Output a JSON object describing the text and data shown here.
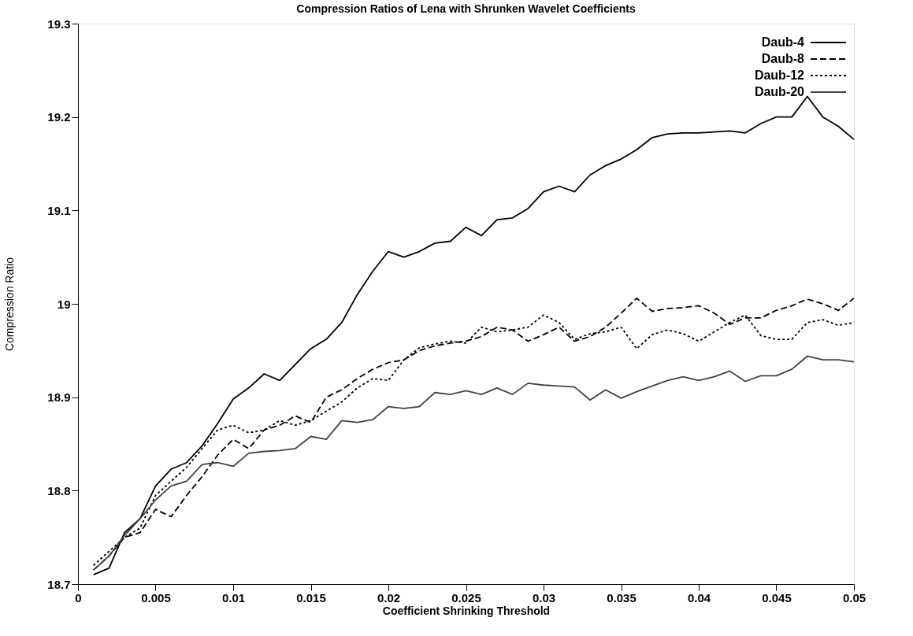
{
  "chart_data": {
    "type": "line",
    "title": "Compression Ratios of Lena with Shrunken Wavelet Coefficients",
    "xlabel": "Coefficient Shrinking Threshold",
    "ylabel": "Compression Ratio",
    "x": [
      0.001,
      0.002,
      0.003,
      0.004,
      0.005,
      0.006,
      0.007,
      0.008,
      0.009,
      0.01,
      0.011,
      0.012,
      0.013,
      0.014,
      0.015,
      0.016,
      0.017,
      0.018,
      0.019,
      0.02,
      0.021,
      0.022,
      0.023,
      0.024,
      0.025,
      0.026,
      0.027,
      0.028,
      0.029,
      0.03,
      0.031,
      0.032,
      0.033,
      0.034,
      0.035,
      0.036,
      0.037,
      0.038,
      0.039,
      0.04,
      0.041,
      0.042,
      0.043,
      0.044,
      0.045,
      0.046,
      0.047,
      0.048,
      0.049,
      0.05
    ],
    "series": [
      {
        "name": "Daub-4",
        "color": "#000000",
        "line_style": "solid",
        "values": [
          18.71,
          18.717,
          18.755,
          18.77,
          18.805,
          18.823,
          18.83,
          18.848,
          18.872,
          18.898,
          18.91,
          18.925,
          18.918,
          18.935,
          18.952,
          18.962,
          18.98,
          19.01,
          19.035,
          19.056,
          19.05,
          19.056,
          19.065,
          19.067,
          19.082,
          19.073,
          19.09,
          19.092,
          19.102,
          19.12,
          19.126,
          19.12,
          19.138,
          19.148,
          19.155,
          19.165,
          19.178,
          19.182,
          19.183,
          19.183,
          19.184,
          19.185,
          19.183,
          19.193,
          19.2,
          19.2,
          19.222,
          19.2,
          19.19,
          19.176
        ]
      },
      {
        "name": "Daub-8",
        "color": "#000000",
        "line_style": "dashed",
        "values": [
          18.715,
          18.73,
          18.75,
          18.755,
          18.78,
          18.772,
          18.795,
          18.815,
          18.838,
          18.855,
          18.845,
          18.865,
          18.87,
          18.88,
          18.873,
          18.9,
          18.908,
          18.92,
          18.93,
          18.937,
          18.94,
          18.95,
          18.955,
          18.958,
          18.96,
          18.965,
          18.975,
          18.972,
          18.96,
          18.967,
          18.975,
          18.96,
          18.965,
          18.975,
          18.99,
          19.006,
          18.992,
          18.995,
          18.996,
          18.998,
          18.99,
          18.978,
          18.985,
          18.985,
          18.993,
          18.998,
          19.005,
          19.0,
          18.993,
          19.006
        ]
      },
      {
        "name": "Daub-12",
        "color": "#000000",
        "line_style": "dotted",
        "values": [
          18.72,
          18.735,
          18.75,
          18.76,
          18.795,
          18.81,
          18.825,
          18.845,
          18.865,
          18.87,
          18.862,
          18.865,
          18.875,
          18.87,
          18.875,
          18.885,
          18.895,
          18.91,
          18.92,
          18.918,
          18.94,
          18.953,
          18.957,
          18.96,
          18.958,
          18.975,
          18.97,
          18.972,
          18.975,
          18.988,
          18.98,
          18.962,
          18.968,
          18.97,
          18.975,
          18.952,
          18.967,
          18.972,
          18.968,
          18.96,
          18.97,
          18.98,
          18.988,
          18.966,
          18.962,
          18.962,
          18.98,
          18.983,
          18.977,
          18.98
        ]
      },
      {
        "name": "Daub-20",
        "color": "#444444",
        "line_style": "solid",
        "values": [
          18.715,
          18.73,
          18.752,
          18.77,
          18.79,
          18.805,
          18.81,
          18.828,
          18.83,
          18.826,
          18.84,
          18.842,
          18.843,
          18.845,
          18.858,
          18.855,
          18.875,
          18.873,
          18.876,
          18.89,
          18.888,
          18.89,
          18.905,
          18.903,
          18.907,
          18.903,
          18.91,
          18.903,
          18.915,
          18.913,
          18.912,
          18.911,
          18.897,
          18.908,
          18.899,
          18.906,
          18.912,
          18.918,
          18.922,
          18.918,
          18.922,
          18.928,
          18.917,
          18.923,
          18.923,
          18.93,
          18.944,
          18.94,
          18.94,
          18.938
        ]
      }
    ],
    "xlim": [
      0,
      0.05
    ],
    "xticks": [
      0,
      0.005,
      0.01,
      0.015,
      0.02,
      0.025,
      0.03,
      0.035,
      0.04,
      0.045,
      0.05
    ],
    "ylim": [
      18.7,
      19.3
    ],
    "yticks": [
      18.7,
      18.8,
      18.9,
      19,
      19.1,
      19.2,
      19.3
    ],
    "grid": false,
    "legend": "top right",
    "marker": "none"
  }
}
